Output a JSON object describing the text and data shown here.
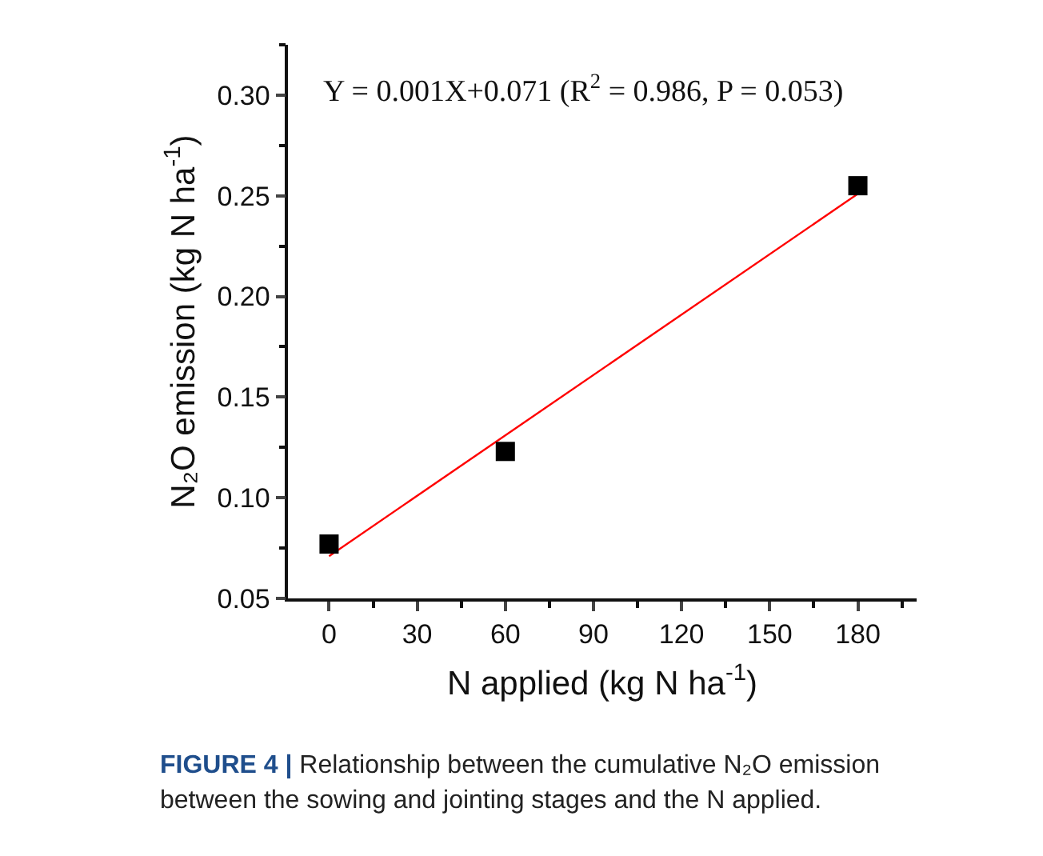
{
  "chart_data": {
    "type": "scatter",
    "xlabel": "N applied (kg N ha$^{-1}$)",
    "ylabel": "N₂O emission (kg N ha$^{-1}$)",
    "x": [
      0,
      60,
      180
    ],
    "series": [
      {
        "color": "#000000",
        "values": [
          0.077,
          0.123,
          0.255
        ],
        "marker": "square"
      },
      {
        "type": "line",
        "color": "#ff0000",
        "x": [
          0,
          180
        ],
        "values": [
          0.071,
          0.251
        ],
        "marker": "none",
        "line_style": "solid"
      }
    ],
    "xlim": [
      -14,
      200
    ],
    "xticks": [
      0,
      30,
      60,
      90,
      120,
      150,
      180
    ],
    "ylim": [
      0.05,
      0.325
    ],
    "yticks": [
      0.05,
      {
        "value": 0.1,
        "label": "0.10"
      },
      0.15,
      {
        "value": 0.2,
        "label": "0.20"
      },
      0.25,
      {
        "value": 0.3,
        "label": "0.30"
      }
    ],
    "grid": false,
    "annotations": [
      "Y = 0.001X+0.071 (R$^{2}$ = 0.986, P = 0.053)",
      "FIGURE 4 | Relationship between the cumulative N₂O emission between the sowing and jointing stages and the N applied."
    ]
  }
}
